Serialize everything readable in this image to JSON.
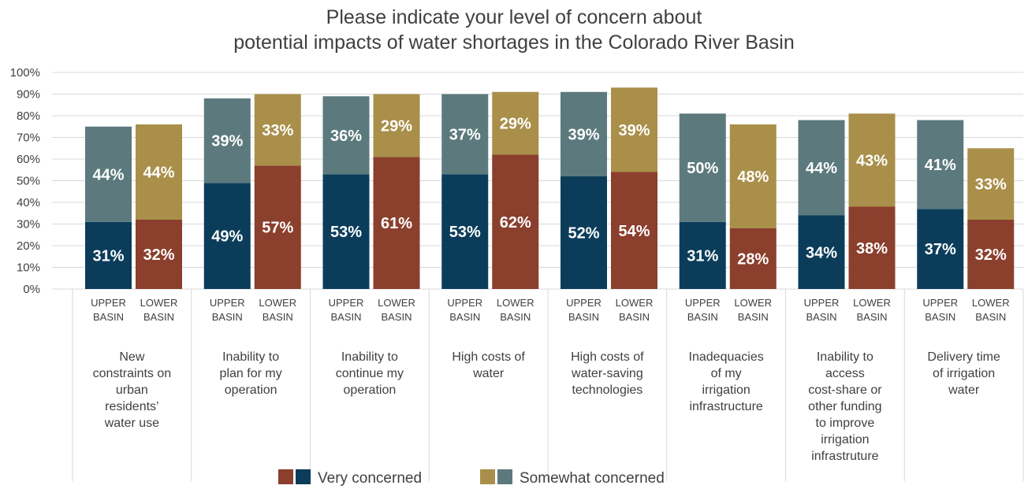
{
  "chart_data": {
    "type": "bar",
    "stacked": true,
    "title_lines": [
      "Please indicate your level of concern about",
      "potential impacts of water shortages in the Colorado River Basin"
    ],
    "y_ticks": [
      "0%",
      "10%",
      "20%",
      "30%",
      "40%",
      "50%",
      "60%",
      "70%",
      "80%",
      "90%",
      "100%"
    ],
    "ylim": [
      0,
      100
    ],
    "sub_categories": [
      "UPPER BASIN",
      "LOWER BASIN"
    ],
    "groups": [
      {
        "label_lines": [
          "New",
          "constraints on",
          "urban",
          "residents’",
          "water use"
        ],
        "very": [
          31,
          32
        ],
        "somewhat": [
          44,
          44
        ],
        "very_labels": [
          "31%",
          "32%"
        ],
        "somewhat_labels": [
          "44%",
          "44%"
        ]
      },
      {
        "label_lines": [
          "Inability to",
          "plan for my",
          "operation"
        ],
        "very": [
          49,
          57
        ],
        "somewhat": [
          39,
          33
        ],
        "very_labels": [
          "49%",
          "57%"
        ],
        "somewhat_labels": [
          "39%",
          "33%"
        ]
      },
      {
        "label_lines": [
          "Inability to",
          "continue my",
          "operation"
        ],
        "very": [
          53,
          61
        ],
        "somewhat": [
          36,
          29
        ],
        "very_labels": [
          "53%",
          "61%"
        ],
        "somewhat_labels": [
          "36%",
          "29%"
        ]
      },
      {
        "label_lines": [
          "High costs of",
          "water"
        ],
        "very": [
          53,
          62
        ],
        "somewhat": [
          37,
          29
        ],
        "very_labels": [
          "53%",
          "62%"
        ],
        "somewhat_labels": [
          "37%",
          "29%"
        ]
      },
      {
        "label_lines": [
          "High costs of",
          "water-saving",
          "technologies"
        ],
        "very": [
          52,
          54
        ],
        "somewhat": [
          39,
          39
        ],
        "very_labels": [
          "52%",
          "54%"
        ],
        "somewhat_labels": [
          "39%",
          "39%"
        ]
      },
      {
        "label_lines": [
          "Inadequacies",
          "of my",
          "irrigation",
          "infrastructure"
        ],
        "very": [
          31,
          28
        ],
        "somewhat": [
          50,
          48
        ],
        "very_labels": [
          "31%",
          "28%"
        ],
        "somewhat_labels": [
          "50%",
          "48%"
        ]
      },
      {
        "label_lines": [
          "Inability to",
          "access",
          "cost-share or",
          "other funding",
          "to improve",
          "irrigation",
          "infrastruture"
        ],
        "very": [
          34,
          38
        ],
        "somewhat": [
          44,
          43
        ],
        "very_labels": [
          "34%",
          "38%"
        ],
        "somewhat_labels": [
          "44%",
          "43%"
        ]
      },
      {
        "label_lines": [
          "Delivery time",
          "of irrigation",
          "water"
        ],
        "very": [
          37,
          32
        ],
        "somewhat": [
          41,
          33
        ],
        "very_labels": [
          "37%",
          "32%"
        ],
        "somewhat_labels": [
          "41%",
          "33%"
        ]
      }
    ],
    "legend": [
      {
        "label": "Very concerned",
        "colors": [
          "#8b3f2d",
          "#0b3d5b"
        ]
      },
      {
        "label": "Somewhat concerned",
        "colors": [
          "#a98f4a",
          "#5c7a7d"
        ]
      }
    ],
    "colors": {
      "upper_very": "#0b3d5b",
      "upper_somewhat": "#5c7a7d",
      "lower_very": "#8b3f2d",
      "lower_somewhat": "#a98f4a",
      "grid": "#d9d9d9"
    },
    "legend_placement": "bottom",
    "grid": true
  }
}
